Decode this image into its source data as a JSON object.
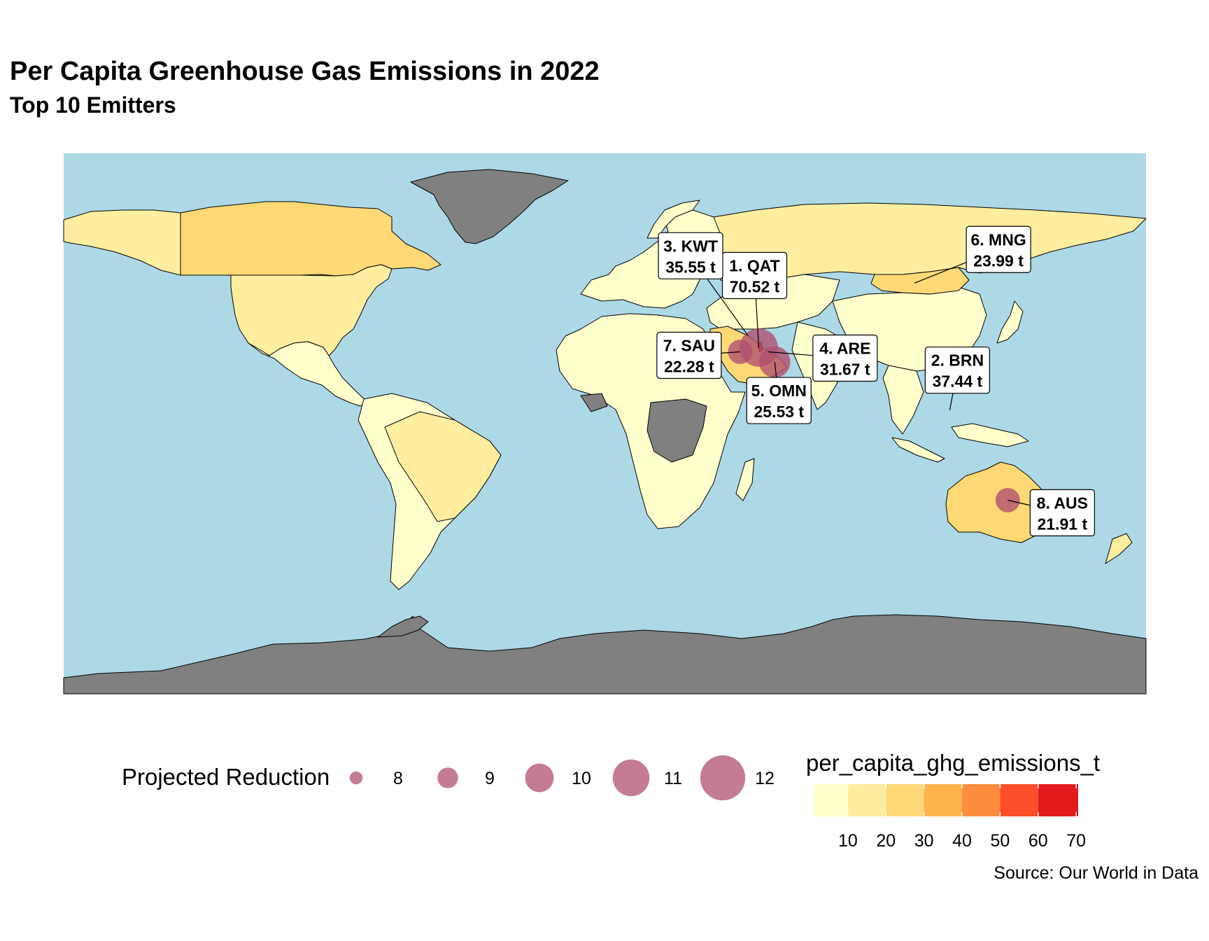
{
  "title": "Per Capita Greenhouse Gas Emissions in 2022",
  "subtitle": "Top 10 Emitters",
  "caption": "Source: Our World in Data",
  "colors": {
    "ocean": "#add8e6",
    "no_data": "#808080",
    "country_border": "#000000",
    "bubble": "#b05070",
    "bubble_opacity": 0.75,
    "scale": [
      "#ffffcc",
      "#ffeda0",
      "#fed976",
      "#feb24c",
      "#fd8d3c",
      "#fc4e2a",
      "#e31a1c"
    ]
  },
  "chart_data": {
    "type": "map",
    "projection": "equirectangular",
    "fill_variable": "per_capita_ghg_emissions_t",
    "size_variable": "Projected Reduction",
    "labels": [
      {
        "rank": "1",
        "code": "QAT",
        "value": "70.52 t",
        "lon": 51.2,
        "lat": 25.3,
        "reduction": 12,
        "fill": "#e31a1c"
      },
      {
        "rank": "2",
        "code": "BRN",
        "value": "37.44 t",
        "lon": 114.7,
        "lat": 4.5,
        "reduction": null,
        "fill": "#fd8d3c"
      },
      {
        "rank": "3",
        "code": "KWT",
        "value": "35.55 t",
        "lon": 47.6,
        "lat": 29.3,
        "reduction": null,
        "fill": "#feb24c"
      },
      {
        "rank": "4",
        "code": "ARE",
        "value": "31.67 t",
        "lon": 54.3,
        "lat": 23.9,
        "reduction": null,
        "fill": "#feb24c"
      },
      {
        "rank": "5",
        "code": "OMN",
        "value": "25.53 t",
        "lon": 56.5,
        "lat": 20.5,
        "reduction": 11,
        "fill": "#fed976"
      },
      {
        "rank": "6",
        "code": "MNG",
        "value": "23.99 t",
        "lon": 103.0,
        "lat": 46.8,
        "reduction": null,
        "fill": "#fed976"
      },
      {
        "rank": "7",
        "code": "SAU",
        "value": "22.28 t",
        "lon": 45.0,
        "lat": 23.9,
        "reduction": 10,
        "fill": "#fed976"
      },
      {
        "rank": "8",
        "code": "AUS",
        "value": "21.91 t",
        "lon": 134.0,
        "lat": -25.5,
        "reduction": 10,
        "fill": "#fed976"
      }
    ],
    "size_legend": {
      "title": "Projected Reduction",
      "breaks": [
        8,
        9,
        10,
        11,
        12
      ]
    },
    "color_legend": {
      "title": "per_capita_ghg_emissions_t",
      "breaks": [
        10,
        20,
        30,
        40,
        50,
        60,
        70
      ],
      "range": [
        1,
        70.52
      ]
    }
  }
}
